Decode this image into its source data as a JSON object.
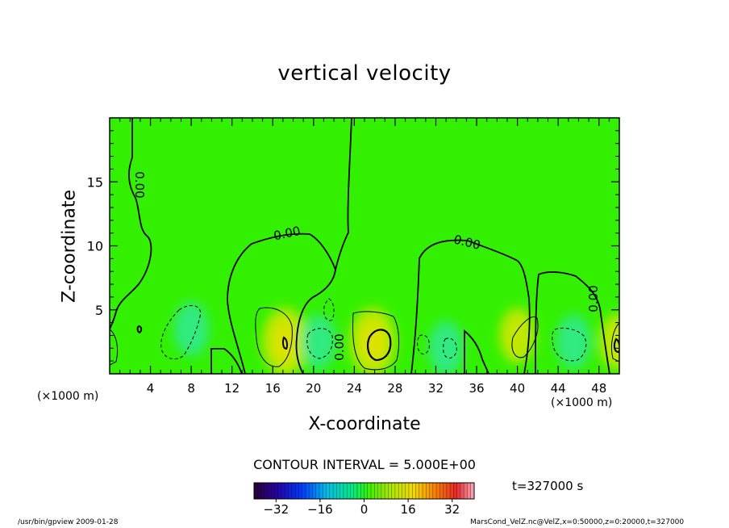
{
  "chart_data": {
    "type": "heatmap",
    "title": "vertical velocity",
    "xlabel": "X-coordinate",
    "ylabel": "Z-coordinate",
    "x_unit": "(×1000 m)",
    "y_unit": "(×1000 m)",
    "xlim": [
      0,
      50
    ],
    "ylim": [
      0,
      20
    ],
    "x_ticks": [
      4,
      8,
      12,
      16,
      20,
      24,
      28,
      32,
      36,
      40,
      44,
      48
    ],
    "y_ticks": [
      5,
      10,
      15
    ],
    "contour_labels": [
      "0.00",
      "0.00",
      "0.00",
      "0.00",
      "0.00"
    ],
    "contour_interval_text": "CONTOUR INTERVAL = 5.000E+00",
    "time_text": "t=327000  s",
    "colorbar": {
      "range": [
        -40,
        40
      ],
      "tick_values": [
        -32,
        -16,
        0,
        16,
        32
      ],
      "tick_labels": [
        "−32",
        "−16",
        "0",
        "16",
        "32"
      ]
    },
    "features": [
      {
        "type": "updraft",
        "x": 17.2,
        "z": 2.5,
        "value": 10
      },
      {
        "type": "updraft",
        "x": 25.8,
        "z": 2.5,
        "value": 10
      },
      {
        "type": "updraft",
        "x": 40.0,
        "z": 3.0,
        "value": 5
      },
      {
        "type": "updraft",
        "x": 49.8,
        "z": 2.5,
        "value": 5
      },
      {
        "type": "downdraft",
        "x": 8.0,
        "z": 3.5,
        "value": -5
      },
      {
        "type": "downdraft",
        "x": 20.5,
        "z": 2.5,
        "value": -5
      },
      {
        "type": "downdraft",
        "x": 33.0,
        "z": 2.0,
        "value": -5
      },
      {
        "type": "downdraft",
        "x": 45.5,
        "z": 2.5,
        "value": -5
      }
    ]
  },
  "footer": {
    "left": "/usr/bin/gpview   2009-01-28",
    "right": "MarsCond_VelZ.nc@VelZ,x=0:50000,z=0:20000,t=327000"
  },
  "colors": {
    "background_field": "#33f000",
    "updraft_core": "#c8e800",
    "downdraft_core": "#30e8a0"
  }
}
